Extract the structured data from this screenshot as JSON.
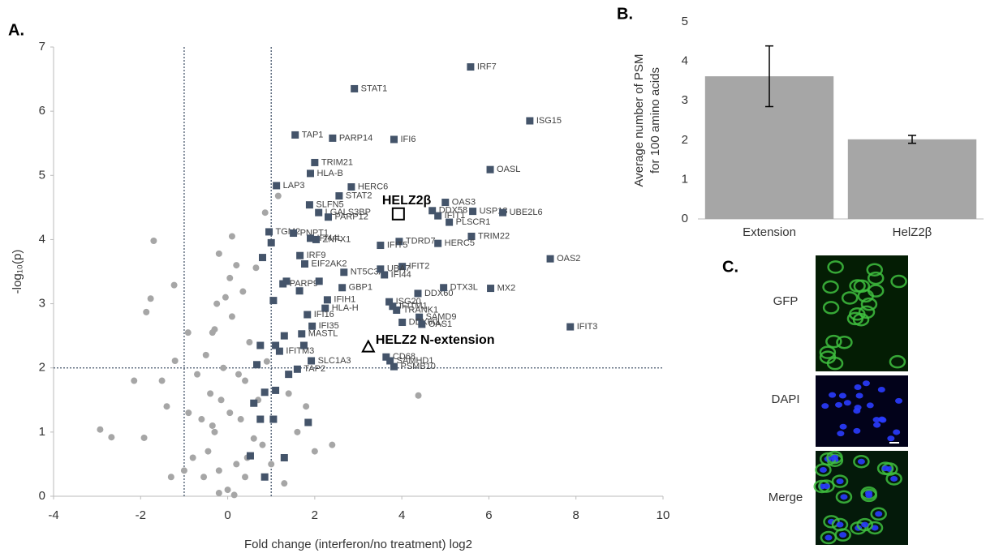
{
  "chart_data": [
    {
      "type": "scatter",
      "panel_label": "A.",
      "xlabel": "Fold change (interferon/no treatment) log2",
      "ylabel": "-log₁₀(p)",
      "xlim": [
        -4,
        10
      ],
      "ylim": [
        0,
        7
      ],
      "xticks": [
        -4,
        -2,
        0,
        2,
        4,
        6,
        8,
        10
      ],
      "yticks": [
        0,
        1,
        2,
        3,
        4,
        5,
        6,
        7
      ],
      "thresholds": {
        "x": [
          -1,
          1
        ],
        "y": 2
      },
      "series": [
        {
          "color": "#a6a6a6",
          "marker": "circle",
          "x": [
            -1.7,
            -1.77,
            -1.87,
            -1.23,
            -0.91,
            -0.2,
            0.86,
            1.16,
            4.38,
            -2.67,
            -2.93,
            -1.92,
            -2.15,
            -1.51,
            -1.21,
            -0.35,
            0.35,
            0.65,
            0,
            -0.2,
            0.2,
            -0.3,
            0.3,
            -0.4,
            0.4,
            -0.5,
            0.5,
            -0.1,
            0.1,
            -0.3,
            -0.6,
            0.6,
            -0.8,
            0.8,
            -1.0,
            1.0,
            -1.3,
            1.3,
            -0.2,
            0.15,
            0.4,
            -0.45,
            0.7,
            -0.7,
            0.9,
            -0.9,
            1.4,
            -1.4,
            1.6,
            2.0,
            1.8,
            2.4,
            -0.05,
            0.05,
            -0.25,
            0.2,
            0.1,
            -0.15,
            0.25,
            -0.35,
            0.45,
            -0.55,
            0.05
          ],
          "y": [
            3.98,
            3.08,
            2.87,
            3.29,
            2.55,
            3.78,
            4.42,
            4.68,
            1.57,
            0.92,
            1.04,
            0.91,
            1.8,
            1.8,
            2.11,
            2.55,
            3.19,
            3.56,
            0.1,
            0.4,
            0.5,
            1.0,
            1.2,
            1.6,
            1.8,
            2.2,
            2.4,
            2.0,
            2.8,
            2.6,
            1.2,
            0.9,
            0.6,
            0.8,
            0.4,
            0.5,
            0.3,
            0.2,
            0.05,
            0.02,
            0.3,
            0.7,
            1.5,
            1.9,
            2.1,
            1.3,
            1.6,
            1.4,
            1.0,
            0.7,
            1.4,
            0.8,
            3.1,
            3.4,
            3.0,
            3.6,
            4.05,
            1.5,
            1.9,
            1.1,
            0.6,
            0.3,
            1.3
          ]
        },
        {
          "color": "#44546a",
          "marker": "square",
          "x": [
            5.58,
            2.91,
            6.94,
            1.55,
            2.41,
            3.82,
            2.0,
            6.03,
            1.9,
            2.84,
            1.12,
            4.7,
            5.0,
            4.83,
            5.63,
            2.56,
            1.88,
            2.09,
            2.31,
            6.32,
            5.09,
            0.95,
            1.51,
            1.9,
            5.6,
            2.03,
            3.94,
            4.83,
            3.51,
            7.41,
            1.66,
            2.67,
            1.77,
            4.01,
            3.51,
            3.6,
            1.27,
            2.63,
            4.37,
            4.96,
            6.04,
            3.71,
            2.29,
            3.79,
            2.24,
            3.88,
            1.83,
            4.4,
            4.01,
            1.94,
            4.46,
            7.87,
            1.7,
            1.19,
            3.64,
            3.73,
            1.92,
            1.6,
            3.82,
            0.67,
            0.85,
            0.6,
            0.75,
            1.05,
            0.52,
            0.85,
            1.3,
            1.85,
            1.1,
            0.75,
            1.05,
            1.35,
            0.8,
            1.0,
            1.3,
            1.4,
            1.1,
            1.75,
            2.1,
            1.65
          ],
          "y": [
            6.69,
            6.35,
            5.85,
            5.63,
            5.58,
            5.56,
            5.2,
            5.09,
            5.03,
            4.82,
            4.84,
            4.45,
            4.58,
            4.37,
            4.44,
            4.68,
            4.54,
            4.42,
            4.35,
            4.42,
            4.27,
            4.12,
            4.1,
            4.02,
            4.05,
            4.0,
            3.97,
            3.94,
            3.91,
            3.7,
            3.75,
            3.49,
            3.62,
            3.58,
            3.54,
            3.45,
            3.31,
            3.25,
            3.16,
            3.25,
            3.24,
            3.03,
            3.06,
            2.96,
            2.93,
            2.9,
            2.83,
            2.79,
            2.71,
            2.65,
            2.68,
            2.64,
            2.53,
            2.26,
            2.17,
            2.11,
            2.11,
            1.98,
            2.02,
            2.05,
            1.62,
            1.45,
            1.2,
            1.2,
            0.63,
            0.3,
            0.6,
            1.15,
            2.35,
            2.35,
            3.05,
            3.35,
            3.72,
            3.95,
            2.5,
            1.9,
            1.65,
            2.35,
            3.35,
            3.2
          ],
          "labels": [
            "IRF7",
            "STAT1",
            "ISG15",
            "TAP1",
            "PARP14",
            "IFI6",
            "TRIM21",
            "OASL",
            "HLA-B",
            "HERC6",
            "LAP3",
            "DDX58",
            "OAS3",
            "IFIT1",
            "USP18",
            "STAT2",
            "SLFN5",
            "LGALS3BP",
            "PARP12",
            "UBE2L6",
            "PLSCR1",
            "TGM2",
            "PNPT1",
            "IFI44L",
            "TRIM22",
            "ZNFX1",
            "TDRD7",
            "HERC5",
            "IFIT5",
            "OAS2",
            "IRF9",
            "NT5C3A",
            "EIF2AK2",
            "IFIT2",
            "UBA7",
            "IFI44",
            "PARP9",
            "GBP1",
            "DDX60",
            "DTX3L",
            "MX2",
            "ISG20",
            "IFIH1",
            "IFITM1",
            "HLA-H",
            "TRANK1",
            "IFI16",
            "SAMD9",
            "DDX60L",
            "IFI35",
            "OAS1",
            "IFIT3",
            "MASTL",
            "IFITM3",
            "CD68",
            "SAMHD1",
            "SLC1A3",
            "TAP2",
            "PSMB10",
            null,
            null,
            null,
            null,
            null,
            null,
            null,
            null,
            null,
            null,
            null,
            null,
            null,
            null,
            null,
            null,
            null,
            null,
            null,
            null,
            null
          ]
        }
      ],
      "highlights": [
        {
          "label": "HELZ2β",
          "marker": "open-square",
          "x": 3.92,
          "y": 4.4
        },
        {
          "label": "HELZ2 N-extension",
          "marker": "triangle",
          "x": 3.23,
          "y": 2.33
        }
      ]
    },
    {
      "type": "bar",
      "panel_label": "B.",
      "ylabel": [
        "Average number of PSM",
        "for 100 amino acids"
      ],
      "categories": [
        "Extension",
        "HelZ2β"
      ],
      "values": [
        3.62,
        2.02
      ],
      "errors": [
        0.77,
        0.1
      ],
      "color": "#a6a6a6",
      "ylim": [
        0,
        5
      ],
      "yticks": [
        0,
        1,
        2,
        3,
        4,
        5
      ]
    }
  ],
  "panel_c": {
    "label": "C.",
    "images": [
      "GFP",
      "DAPI",
      "Merge"
    ]
  }
}
